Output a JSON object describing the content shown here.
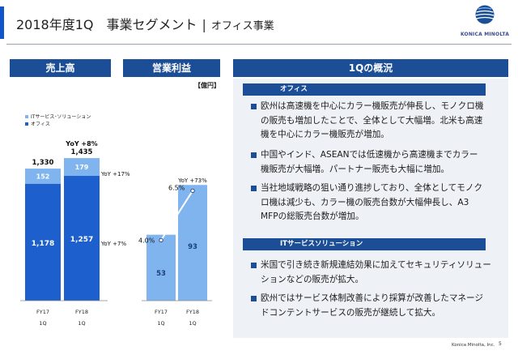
{
  "header": {
    "title": "2018年度1Q　事業セグメント",
    "separator": "|",
    "subtitle": "オフィス事業"
  },
  "logo": {
    "text": "KONICA MINOLTA",
    "colors": [
      "#1b4e96",
      "#5aa0e0"
    ]
  },
  "left_headers": {
    "sales": "売上高",
    "op_profit": "営業利益",
    "unit": "【億円】"
  },
  "right_header": "1Qの概況",
  "colors": {
    "accent": "#1155cc",
    "header_bg": "#1b4e96",
    "dark_bar": "#1d5fcc",
    "light_bar": "#7fb4ee",
    "panel_bg": "#eef1f6"
  },
  "chart_data": [
    {
      "type": "bar",
      "stacked": true,
      "categories": [
        "FY17 1Q",
        "FY18 1Q"
      ],
      "category_lines": [
        [
          "FY17",
          "1Q"
        ],
        [
          "FY18",
          "1Q"
        ]
      ],
      "series": [
        {
          "name": "オフィス",
          "values": [
            1178,
            1257
          ],
          "color": "#1d5fcc"
        },
        {
          "name": "ITサービス･ソリューション",
          "values": [
            152,
            179
          ],
          "color": "#7fb4ee"
        }
      ],
      "totals": [
        "1,330",
        "1,435"
      ],
      "value_labels": {
        "オフィス": [
          "1,178",
          "1,257"
        ],
        "ITサービス･ソリューション": [
          "152",
          "179"
        ]
      },
      "annotations": {
        "total_yoy": "YoY +8%",
        "it_yoy": "YoY +17%",
        "office_yoy": "YoY +7%"
      },
      "legend": [
        "ITサービス･ソリューション",
        "オフィス"
      ],
      "ylim": [
        0,
        1500
      ]
    },
    {
      "type": "bar",
      "categories": [
        "FY17 1Q",
        "FY18 1Q"
      ],
      "category_lines": [
        [
          "FY17",
          "1Q"
        ],
        [
          "FY18",
          "1Q"
        ]
      ],
      "values": [
        53,
        93
      ],
      "value_labels": [
        "53",
        "93"
      ],
      "margin_line": {
        "values": [
          4.0,
          6.5
        ],
        "labels": [
          "4.0%",
          "6.5%"
        ]
      },
      "annotations": {
        "yoy": "YoY +73%"
      },
      "ylim": [
        0,
        135
      ]
    }
  ],
  "overview": {
    "office_tag": "オフィス",
    "office_bullets": [
      [
        "欧州は高速機を中心にカラー機販売が伸長し、モノクロ機",
        "の販売も増加したことで、全体として大幅増。北米も高速",
        "機を中心にカラー機販売が増加。"
      ],
      [
        "中国やインド、ASEANでは低速機から高速機までカラー",
        "機販売が大幅増。パートナー販売も大幅に増加。"
      ],
      [
        "当社地域戦略の狙い通り進捗しており、全体としてモノク",
        "ロ機は減少も、カラー機の販売台数が大幅伸長し、A3",
        "MFPの総販売台数が増加。"
      ]
    ],
    "it_tag": "ITサービスソリューション",
    "it_bullets": [
      [
        "米国で引き続き新規連結効果に加えてセキュリティソリュー",
        "ションなどの販売が拡大。"
      ],
      [
        "欧州ではサービス体制改善により採算が改善したマネージ",
        "ドコンテントサービスの販売が継続して拡大。"
      ]
    ]
  },
  "footer": {
    "company": "Konica Minolta, Inc.",
    "page": "5"
  }
}
